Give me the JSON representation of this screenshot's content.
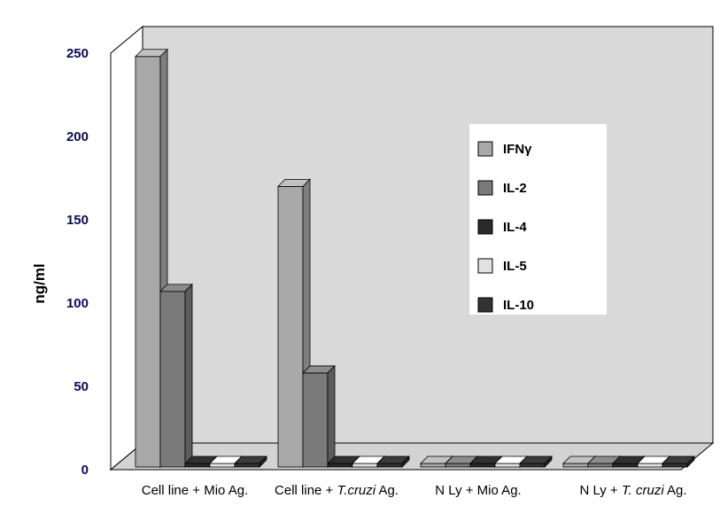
{
  "chart_data": {
    "type": "bar",
    "style": "3d-clustered-column",
    "ylabel": "ng/ml",
    "xlabel": "",
    "ylim": [
      0,
      250
    ],
    "y_ticks": [
      0,
      50,
      100,
      150,
      200,
      250
    ],
    "grid": false,
    "legend_position": "right",
    "categories": [
      {
        "parts": [
          {
            "text": "Cell line + Mio Ag.",
            "italic": false
          }
        ]
      },
      {
        "parts": [
          {
            "text": "Cell line + ",
            "italic": false
          },
          {
            "text": "T.cruzi",
            "italic": true
          },
          {
            "text": " Ag.",
            "italic": false
          }
        ]
      },
      {
        "parts": [
          {
            "text": "N Ly + Mio Ag.",
            "italic": false
          }
        ]
      },
      {
        "parts": [
          {
            "text": "N Ly + ",
            "italic": false
          },
          {
            "text": "T. cruzi",
            "italic": true
          },
          {
            "text": " Ag.",
            "italic": false
          }
        ]
      }
    ],
    "series": [
      {
        "name": "IFNγ",
        "color": "#a8a8a8",
        "values": [
          248,
          170,
          0,
          0
        ]
      },
      {
        "name": "IL-2",
        "color": "#7a7a7a",
        "values": [
          107,
          58,
          0,
          0
        ]
      },
      {
        "name": "IL-4",
        "color": "#2a2a2a",
        "values": [
          0,
          0,
          0,
          0
        ]
      },
      {
        "name": "IL-5",
        "color": "#e2e2e2",
        "values": [
          0,
          0,
          0,
          0
        ]
      },
      {
        "name": "IL-10",
        "color": "#333333",
        "values": [
          0,
          0,
          0,
          0
        ]
      }
    ],
    "colors": {
      "wall": "#d9d9d9",
      "floor": "#d3d3d3",
      "frame": "#000000",
      "tick_text": "#0b0b55"
    }
  }
}
